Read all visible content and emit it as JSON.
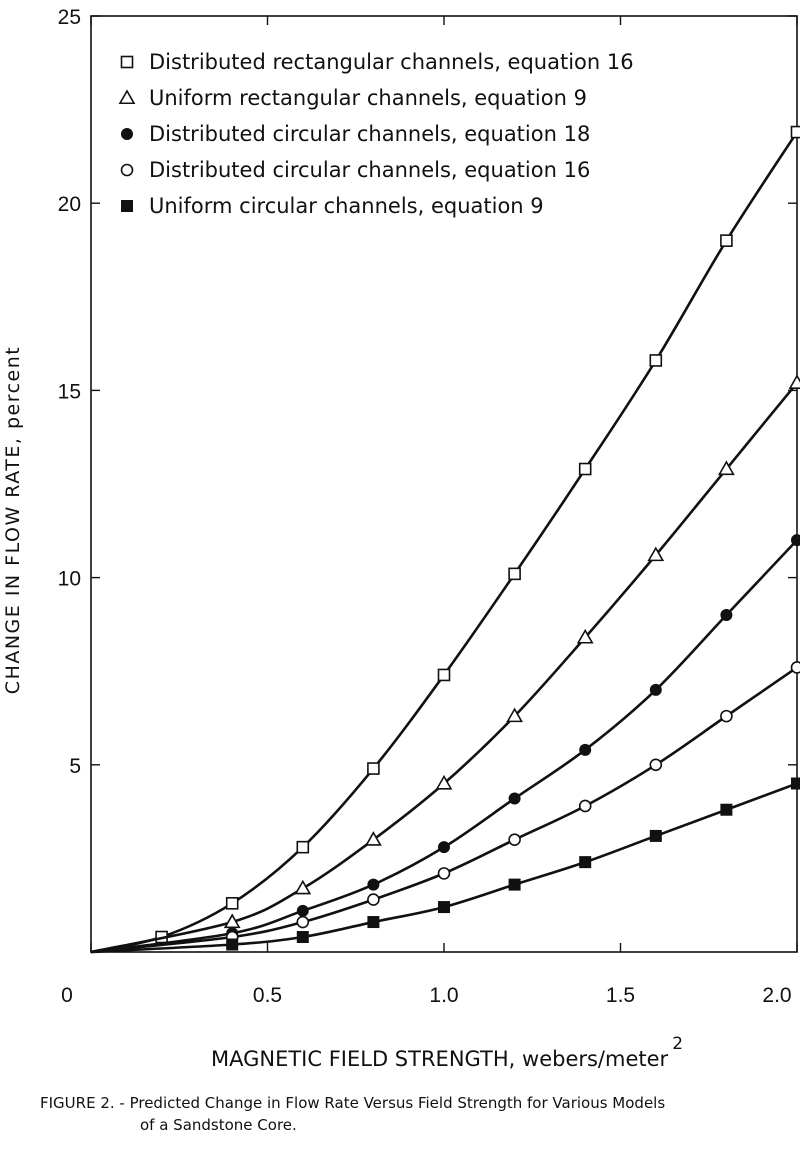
{
  "caption": {
    "line1": "FIGURE 2. - Predicted Change in Flow Rate Versus Field Strength for Various Models",
    "line2": "of a Sandstone Core."
  },
  "chart_data": {
    "type": "line",
    "xlabel": "MAGNETIC FIELD STRENGTH, webers/meter",
    "xlabel_superscript": "2",
    "ylabel": "CHANGE IN FLOW RATE, percent",
    "xlim": [
      0,
      2.0
    ],
    "ylim": [
      0,
      25
    ],
    "xticks": [
      {
        "v": 0,
        "label": "0"
      },
      {
        "v": 0.5,
        "label": "0.5"
      },
      {
        "v": 1.0,
        "label": "1.0"
      },
      {
        "v": 1.5,
        "label": "1.5"
      },
      {
        "v": 2.0,
        "label": "2.0"
      }
    ],
    "yticks": [
      {
        "v": 5,
        "label": "5"
      },
      {
        "v": 10,
        "label": "10"
      },
      {
        "v": 15,
        "label": "15"
      },
      {
        "v": 20,
        "label": "20"
      },
      {
        "v": 25,
        "label": "25"
      }
    ],
    "grid": false,
    "legend_position": "top-left",
    "series": [
      {
        "name": "Distributed rectangular channels, equation 16",
        "marker": "open-square",
        "x": [
          0,
          0.2,
          0.4,
          0.6,
          0.8,
          1.0,
          1.2,
          1.4,
          1.6,
          1.8,
          2.0
        ],
        "y": [
          0,
          0.4,
          1.3,
          2.8,
          4.9,
          7.4,
          10.1,
          12.9,
          15.8,
          19.0,
          21.9
        ]
      },
      {
        "name": "Uniform rectangular channels, equation 9",
        "marker": "open-triangle",
        "x": [
          0,
          0.4,
          0.6,
          0.8,
          1.0,
          1.2,
          1.4,
          1.6,
          1.8,
          2.0
        ],
        "y": [
          0,
          0.8,
          1.7,
          3.0,
          4.5,
          6.3,
          8.4,
          10.6,
          12.9,
          15.2
        ]
      },
      {
        "name": "Distributed circular channels, equation 18",
        "marker": "filled-circle",
        "x": [
          0,
          0.4,
          0.6,
          0.8,
          1.0,
          1.2,
          1.4,
          1.6,
          1.8,
          2.0
        ],
        "y": [
          0,
          0.5,
          1.1,
          1.8,
          2.8,
          4.1,
          5.4,
          7.0,
          9.0,
          11.0
        ]
      },
      {
        "name": "Distributed circular channels, equation 16",
        "marker": "open-circle",
        "x": [
          0,
          0.4,
          0.6,
          0.8,
          1.0,
          1.2,
          1.4,
          1.6,
          1.8,
          2.0
        ],
        "y": [
          0,
          0.4,
          0.8,
          1.4,
          2.1,
          3.0,
          3.9,
          5.0,
          6.3,
          7.6
        ]
      },
      {
        "name": "Uniform circular channels, equation 9",
        "marker": "filled-square",
        "x": [
          0,
          0.4,
          0.6,
          0.8,
          1.0,
          1.2,
          1.4,
          1.6,
          1.8,
          2.0
        ],
        "y": [
          0,
          0.2,
          0.4,
          0.8,
          1.2,
          1.8,
          2.4,
          3.1,
          3.8,
          4.5
        ]
      }
    ]
  }
}
